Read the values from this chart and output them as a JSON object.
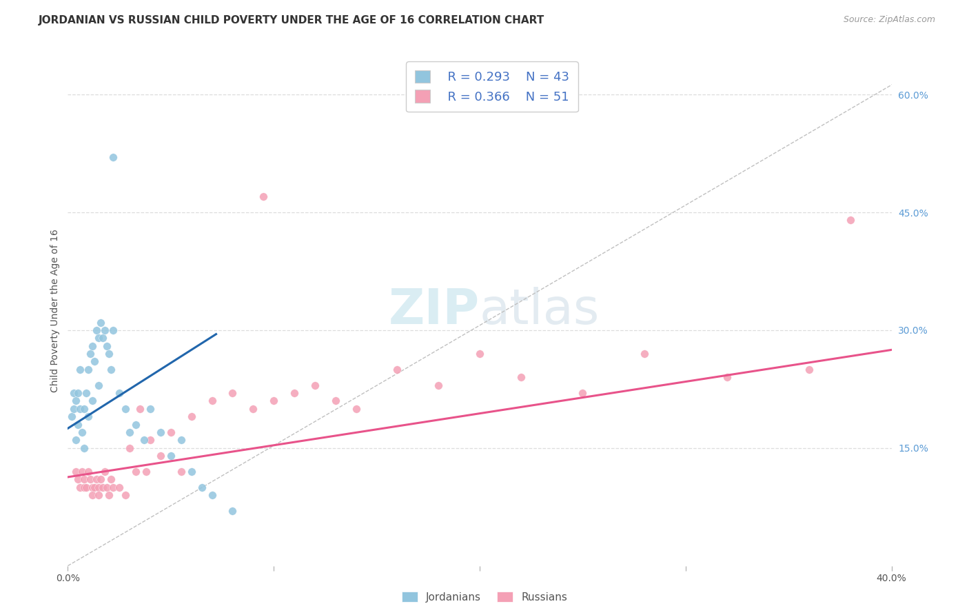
{
  "title": "JORDANIAN VS RUSSIAN CHILD POVERTY UNDER THE AGE OF 16 CORRELATION CHART",
  "source": "Source: ZipAtlas.com",
  "ylabel": "Child Poverty Under the Age of 16",
  "xlim": [
    0.0,
    0.4
  ],
  "ylim": [
    0.0,
    0.65
  ],
  "y_ticks_right": [
    0.15,
    0.3,
    0.45,
    0.6
  ],
  "y_tick_labels_right": [
    "15.0%",
    "30.0%",
    "45.0%",
    "60.0%"
  ],
  "jordan_color": "#92c5de",
  "russia_color": "#f4a0b5",
  "jordan_line_color": "#2166ac",
  "russia_line_color": "#e8538a",
  "diag_line_color": "#c0c0c0",
  "watermark_zip": "ZIP",
  "watermark_atlas": "atlas",
  "legend_jordan_R": "R = 0.293",
  "legend_jordan_N": "N = 43",
  "legend_russia_R": "R = 0.366",
  "legend_russia_N": "N = 51",
  "jordan_x": [
    0.002,
    0.003,
    0.003,
    0.004,
    0.004,
    0.005,
    0.005,
    0.006,
    0.006,
    0.007,
    0.008,
    0.008,
    0.009,
    0.01,
    0.01,
    0.011,
    0.012,
    0.012,
    0.013,
    0.014,
    0.015,
    0.015,
    0.016,
    0.017,
    0.018,
    0.019,
    0.02,
    0.021,
    0.022,
    0.025,
    0.028,
    0.03,
    0.033,
    0.037,
    0.04,
    0.045,
    0.05,
    0.055,
    0.06,
    0.065,
    0.07,
    0.08,
    0.022
  ],
  "jordan_y": [
    0.19,
    0.2,
    0.22,
    0.16,
    0.21,
    0.18,
    0.22,
    0.2,
    0.25,
    0.17,
    0.15,
    0.2,
    0.22,
    0.19,
    0.25,
    0.27,
    0.21,
    0.28,
    0.26,
    0.3,
    0.29,
    0.23,
    0.31,
    0.29,
    0.3,
    0.28,
    0.27,
    0.25,
    0.3,
    0.22,
    0.2,
    0.17,
    0.18,
    0.16,
    0.2,
    0.17,
    0.14,
    0.16,
    0.12,
    0.1,
    0.09,
    0.07,
    0.52
  ],
  "russia_x": [
    0.004,
    0.005,
    0.006,
    0.007,
    0.008,
    0.008,
    0.009,
    0.01,
    0.011,
    0.012,
    0.012,
    0.013,
    0.014,
    0.015,
    0.015,
    0.016,
    0.017,
    0.018,
    0.019,
    0.02,
    0.021,
    0.022,
    0.025,
    0.028,
    0.03,
    0.033,
    0.035,
    0.038,
    0.04,
    0.045,
    0.05,
    0.055,
    0.06,
    0.07,
    0.08,
    0.09,
    0.1,
    0.11,
    0.12,
    0.13,
    0.14,
    0.16,
    0.18,
    0.2,
    0.22,
    0.25,
    0.28,
    0.32,
    0.36,
    0.38,
    0.095
  ],
  "russia_y": [
    0.12,
    0.11,
    0.1,
    0.12,
    0.11,
    0.1,
    0.1,
    0.12,
    0.11,
    0.1,
    0.09,
    0.1,
    0.11,
    0.1,
    0.09,
    0.11,
    0.1,
    0.12,
    0.1,
    0.09,
    0.11,
    0.1,
    0.1,
    0.09,
    0.15,
    0.12,
    0.2,
    0.12,
    0.16,
    0.14,
    0.17,
    0.12,
    0.19,
    0.21,
    0.22,
    0.2,
    0.21,
    0.22,
    0.23,
    0.21,
    0.2,
    0.25,
    0.23,
    0.27,
    0.24,
    0.22,
    0.27,
    0.24,
    0.25,
    0.44,
    0.47
  ],
  "background_color": "#ffffff",
  "grid_color": "#dddddd",
  "title_fontsize": 11,
  "label_fontsize": 10,
  "tick_fontsize": 10
}
